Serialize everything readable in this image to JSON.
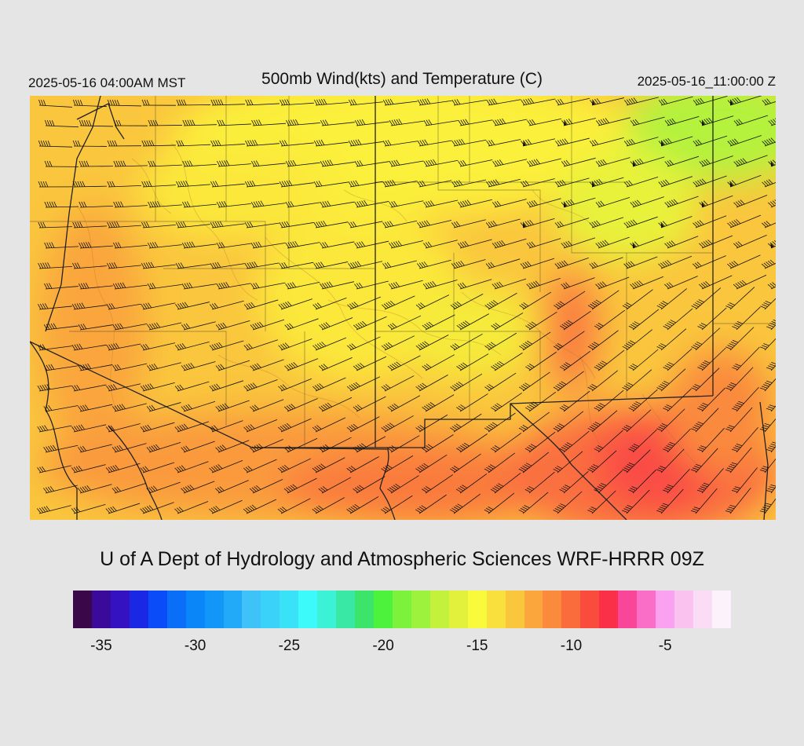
{
  "header": {
    "local_time": "2025-05-16 04:00AM MST",
    "title": "500mb Wind(kts) and Temperature (C)",
    "valid_time": "2025-05-16_11:00:00 Z"
  },
  "credit": "U of A Dept of Hydrology and Atmospheric Sciences WRF-HRRR 09Z",
  "colorbar": {
    "colors": [
      "#3a0848",
      "#3a0a9a",
      "#3412c2",
      "#1a28e6",
      "#0a4cf8",
      "#0a6ef8",
      "#0a86f8",
      "#1296f8",
      "#22aaf8",
      "#3ec2f8",
      "#3ad2f8",
      "#3ae2f8",
      "#3cfafa",
      "#3cf2d6",
      "#3ae8a6",
      "#3ce46a",
      "#4cf23c",
      "#7cf23c",
      "#9cf23c",
      "#c4f23c",
      "#e2f23c",
      "#fafa3c",
      "#fae03c",
      "#fac63c",
      "#faa63c",
      "#fa8a3c",
      "#fa6c3c",
      "#fa4c3c",
      "#fa3048",
      "#fa4698",
      "#fa6ec8",
      "#faa2f0",
      "#fac2ee",
      "#fadcf6",
      "#fcf2fc"
    ],
    "tick_labels": [
      "-35",
      "-30",
      "-25",
      "-20",
      "-15",
      "-10",
      "-5"
    ],
    "tick_values": [
      -35,
      -30,
      -25,
      -20,
      -15,
      -10,
      -5
    ],
    "min": -36,
    "max": -1
  },
  "map": {
    "variable": "500mb temperature (C) with wind barbs (kts)",
    "field_colors": {
      "cold_north": "#fbf03a",
      "mid": "#fac63c",
      "warm": "#faa63c",
      "warmer": "#fa8a3c",
      "warmest": "#fa5c44",
      "cool_ne": "#b4f23c"
    }
  }
}
